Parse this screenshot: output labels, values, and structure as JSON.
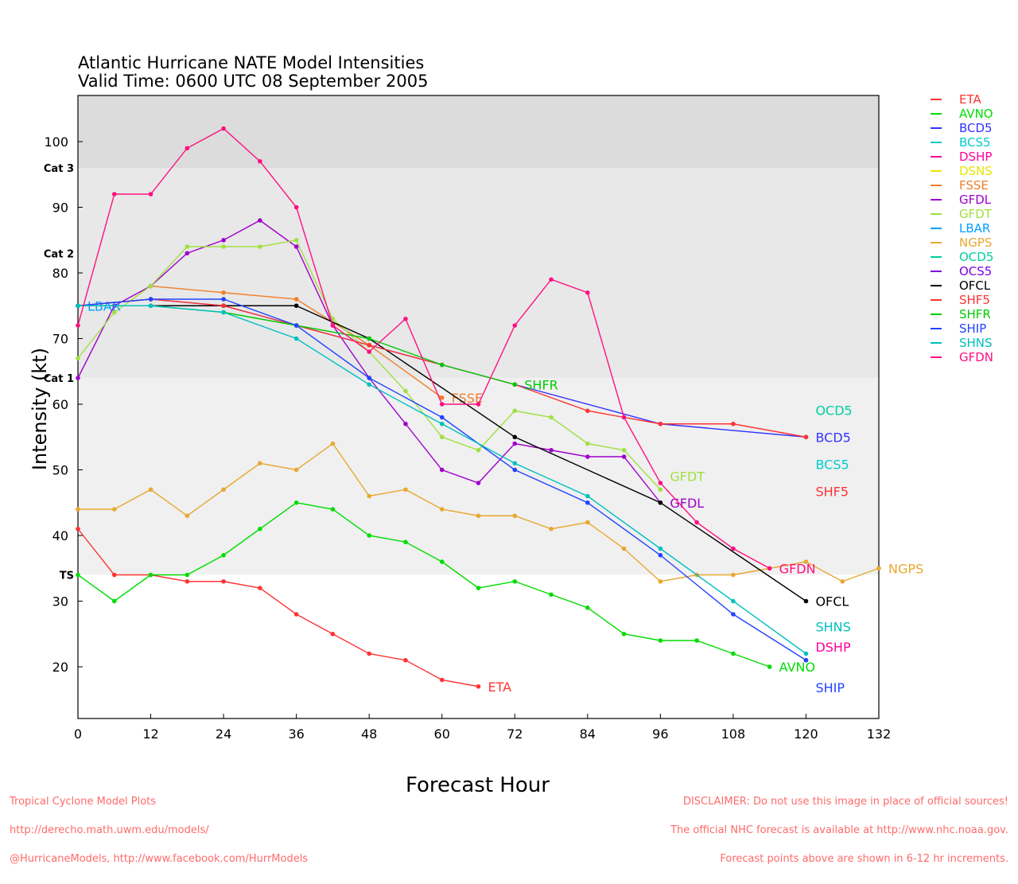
{
  "title_line1": "Atlantic Hurricane NATE Model Intensities",
  "title_line2": "Valid Time: 0600 UTC 08 September 2005",
  "footer_left": [
    "Tropical Cyclone Model Plots",
    "http://derecho.math.uwm.edu/models/",
    "@HurricaneModels, http://www.facebook.com/HurrModels"
  ],
  "footer_right": [
    "DISCLAIMER: Do not use this image in place of official sources!",
    "The official NHC forecast is available at http://www.nhc.noaa.gov.",
    "Forecast points above are shown in 6-12 hr increments."
  ],
  "chart_data": {
    "type": "line",
    "title": "Atlantic Hurricane NATE Model Intensities",
    "subtitle": "Valid Time: 0600 UTC 08 September 2005",
    "xlabel": "Forecast Hour",
    "ylabel": "Intensity (kt)",
    "xlim": [
      0,
      132
    ],
    "ylim": [
      12,
      107
    ],
    "xticks": [
      0,
      12,
      24,
      36,
      48,
      60,
      72,
      84,
      96,
      108,
      120,
      132
    ],
    "yticks": [
      20,
      30,
      40,
      50,
      60,
      70,
      80,
      90,
      100
    ],
    "categories": [
      {
        "label": "TS",
        "value": 34
      },
      {
        "label": "Cat 1",
        "value": 64
      },
      {
        "label": "Cat 2",
        "value": 83
      },
      {
        "label": "Cat 3",
        "value": 96
      }
    ],
    "legend_position": "right-outside",
    "series": [
      {
        "name": "ETA",
        "color": "#ff3333",
        "x": [
          0,
          6,
          12,
          18,
          24,
          30,
          36,
          42,
          48,
          54,
          60,
          66
        ],
        "y": [
          41,
          34,
          34,
          33,
          33,
          32,
          28,
          25,
          22,
          21,
          18,
          17
        ]
      },
      {
        "name": "AVNO",
        "color": "#00dd00",
        "x": [
          0,
          6,
          12,
          18,
          24,
          30,
          36,
          42,
          48,
          54,
          60,
          66,
          72,
          78,
          84,
          90,
          96,
          102,
          108,
          114
        ],
        "y": [
          34,
          30,
          34,
          34,
          37,
          41,
          45,
          44,
          40,
          39,
          36,
          32,
          33,
          31,
          29,
          25,
          24,
          24,
          22,
          20
        ]
      },
      {
        "name": "BCD5",
        "color": "#3333ff",
        "x": [
          0,
          12,
          24,
          36,
          48,
          60,
          72,
          96,
          120
        ],
        "y": [
          75,
          76,
          75,
          72,
          69,
          66,
          63,
          57,
          55
        ]
      },
      {
        "name": "BCS5",
        "color": "#00cccc",
        "x": [
          120
        ],
        "y": [
          55
        ]
      },
      {
        "name": "DSHP",
        "color": "#ff0099",
        "x": [
          120
        ],
        "y": [
          21
        ]
      },
      {
        "name": "DSNS",
        "color": "#e6e600",
        "x": [],
        "y": []
      },
      {
        "name": "FSSE",
        "color": "#f0802a",
        "x": [
          12,
          24,
          36,
          48,
          60
        ],
        "y": [
          78,
          77,
          76,
          69,
          61
        ]
      },
      {
        "name": "GFDL",
        "color": "#a000cc",
        "x": [
          0,
          6,
          12,
          18,
          24,
          30,
          36,
          42,
          48,
          54,
          60,
          66,
          72,
          78,
          84,
          90,
          96
        ],
        "y": [
          64,
          75,
          78,
          83,
          85,
          88,
          84,
          72,
          64,
          57,
          50,
          48,
          54,
          53,
          52,
          52,
          45
        ]
      },
      {
        "name": "GFDT",
        "color": "#a0e040",
        "x": [
          0,
          6,
          12,
          18,
          24,
          30,
          36,
          42,
          48,
          54,
          60,
          66,
          72,
          78,
          84,
          90,
          96
        ],
        "y": [
          67,
          74,
          78,
          84,
          84,
          84,
          85,
          73,
          68,
          62,
          55,
          53,
          59,
          58,
          54,
          53,
          47
        ]
      },
      {
        "name": "LBAR",
        "color": "#00a0ff",
        "x": [
          0
        ],
        "y": [
          75
        ]
      },
      {
        "name": "NGPS",
        "color": "#e8a830",
        "x": [
          0,
          6,
          12,
          18,
          24,
          30,
          36,
          42,
          48,
          54,
          60,
          66,
          72,
          78,
          84,
          90,
          96,
          102,
          108,
          114,
          120,
          126,
          132
        ],
        "y": [
          44,
          44,
          47,
          43,
          47,
          51,
          50,
          54,
          46,
          47,
          44,
          43,
          43,
          41,
          42,
          38,
          33,
          34,
          34,
          35,
          36,
          33,
          35
        ]
      },
      {
        "name": "OCD5",
        "color": "#00d0a0",
        "x": [
          120
        ],
        "y": [
          55
        ]
      },
      {
        "name": "OCS5",
        "color": "#8000e0",
        "x": [],
        "y": []
      },
      {
        "name": "OFCL",
        "color": "#000000",
        "x": [
          0,
          12,
          24,
          36,
          48,
          72,
          96,
          120
        ],
        "y": [
          75,
          75,
          75,
          75,
          70,
          55,
          45,
          30
        ]
      },
      {
        "name": "SHF5",
        "color": "#ff3333",
        "x": [
          0,
          12,
          24,
          36,
          48,
          60,
          72,
          84,
          96,
          108,
          120
        ],
        "y": [
          75,
          76,
          75,
          72,
          69,
          66,
          63,
          59,
          57,
          57,
          55
        ]
      },
      {
        "name": "SHFR",
        "color": "#00cc00",
        "x": [
          0,
          12,
          24,
          36,
          48,
          60,
          72
        ],
        "y": [
          75,
          75,
          74,
          72,
          70,
          66,
          63
        ]
      },
      {
        "name": "SHIP",
        "color": "#2244ff",
        "x": [
          0,
          12,
          24,
          36,
          48,
          60,
          72,
          84,
          96,
          108,
          120
        ],
        "y": [
          75,
          76,
          76,
          72,
          64,
          58,
          50,
          45,
          37,
          28,
          21
        ]
      },
      {
        "name": "SHNS",
        "color": "#00c0c0",
        "x": [
          0,
          12,
          24,
          36,
          48,
          60,
          72,
          84,
          96,
          108,
          120
        ],
        "y": [
          75,
          75,
          74,
          70,
          63,
          57,
          51,
          46,
          38,
          30,
          22
        ]
      },
      {
        "name": "GFDN",
        "color": "#ff1080",
        "x": [
          0,
          6,
          12,
          18,
          24,
          30,
          36,
          42,
          48,
          54,
          60,
          66,
          72,
          78,
          84,
          90,
          96,
          102,
          108,
          114
        ],
        "y": [
          72,
          92,
          92,
          99,
          102,
          97,
          90,
          72,
          68,
          73,
          60,
          60,
          72,
          79,
          77,
          58,
          48,
          42,
          38,
          35
        ]
      }
    ]
  }
}
